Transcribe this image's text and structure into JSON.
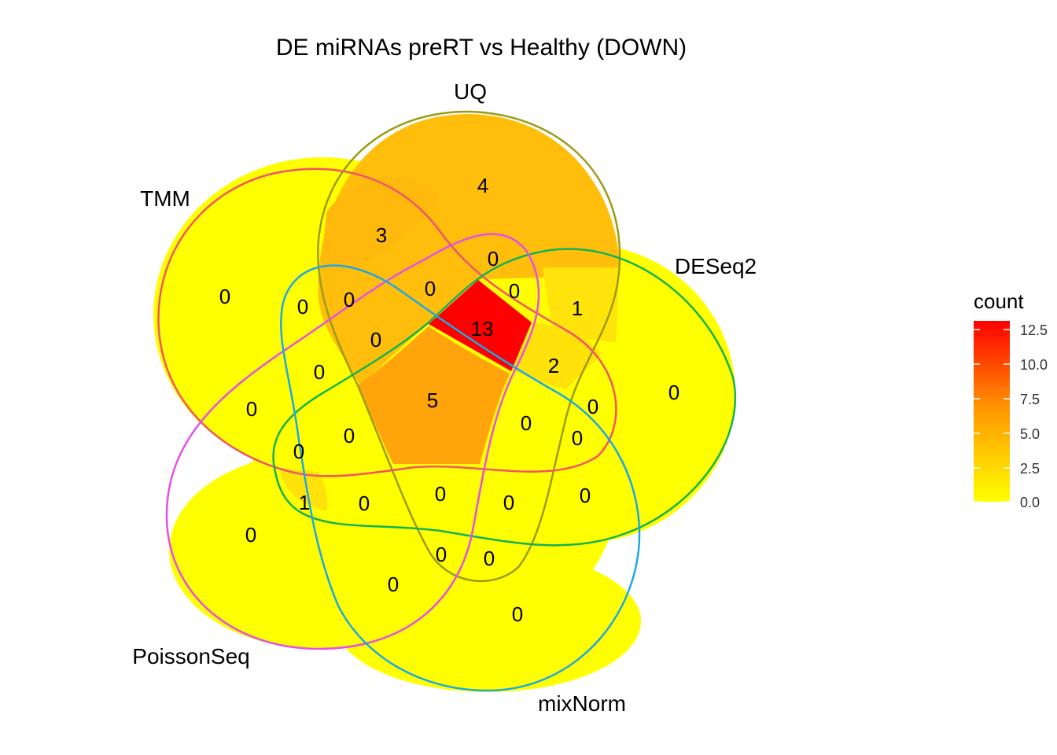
{
  "title": "DE miRNAs preRT vs Healthy (DOWN)",
  "sets": [
    {
      "name": "UQ",
      "color": "#9C9C14"
    },
    {
      "name": "TMM",
      "color": "#F0556A"
    },
    {
      "name": "DESeq2",
      "color": "#13B255"
    },
    {
      "name": "PoissonSeq",
      "color": "#E64FE6"
    },
    {
      "name": "mixNorm",
      "color": "#1EA8E3"
    }
  ],
  "regions": [
    {
      "id": "uq_only",
      "sets": [
        "UQ"
      ],
      "count": "4"
    },
    {
      "id": "tmm_only",
      "sets": [
        "TMM"
      ],
      "count": "0"
    },
    {
      "id": "deseq2_only",
      "sets": [
        "DESeq2"
      ],
      "count": "0"
    },
    {
      "id": "poissonseq_only",
      "sets": [
        "PoissonSeq"
      ],
      "count": "0"
    },
    {
      "id": "mixnorm_only",
      "sets": [
        "mixNorm"
      ],
      "count": "0"
    },
    {
      "id": "uq_tmm",
      "sets": [
        "UQ",
        "TMM"
      ],
      "count": "3"
    },
    {
      "id": "uq_deseq2",
      "sets": [
        "UQ",
        "DESeq2"
      ],
      "count": "1"
    },
    {
      "id": "all_five",
      "sets": [
        "UQ",
        "TMM",
        "DESeq2",
        "PoissonSeq",
        "mixNorm"
      ],
      "count": "13"
    },
    {
      "id": "all_but_uq",
      "sets": [
        "TMM",
        "DESeq2",
        "PoissonSeq",
        "mixNorm"
      ],
      "count": "5"
    },
    {
      "id": "uq_tmm_deseq2",
      "sets": [
        "UQ",
        "TMM",
        "DESeq2"
      ],
      "count": "2"
    },
    {
      "id": "poissonseq_deseq2",
      "sets": [
        "PoissonSeq",
        "DESeq2"
      ],
      "count": "1"
    },
    {
      "id": "r12",
      "count": "0"
    },
    {
      "id": "r13",
      "count": "0"
    },
    {
      "id": "r14",
      "count": "0"
    },
    {
      "id": "r15",
      "count": "0"
    },
    {
      "id": "r16",
      "count": "0"
    },
    {
      "id": "r17",
      "count": "0"
    },
    {
      "id": "r18",
      "count": "0"
    },
    {
      "id": "r19",
      "count": "0"
    },
    {
      "id": "r20",
      "count": "0"
    },
    {
      "id": "r21",
      "count": "0"
    },
    {
      "id": "r22",
      "count": "0"
    },
    {
      "id": "r23",
      "count": "0"
    },
    {
      "id": "r24",
      "count": "0"
    },
    {
      "id": "r25",
      "count": "0"
    },
    {
      "id": "r26",
      "count": "0"
    },
    {
      "id": "r27",
      "count": "0"
    },
    {
      "id": "r28",
      "count": "0"
    },
    {
      "id": "r29",
      "count": "0"
    },
    {
      "id": "r30",
      "count": "0"
    },
    {
      "id": "r31",
      "count": "0"
    }
  ],
  "legend": {
    "title": "count",
    "ticks": [
      "12.5",
      "10.0",
      "7.5",
      "5.0",
      "2.5",
      "0.0"
    ],
    "low_color": "#FFFF00",
    "high_color": "#FF0000",
    "max": 13
  }
}
